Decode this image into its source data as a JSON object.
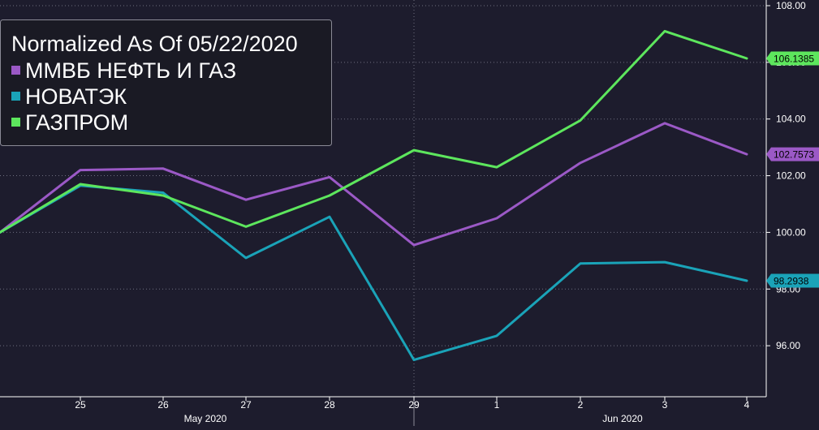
{
  "colors": {
    "background": "#1d1c2d",
    "grid": "#6f6f80",
    "axis_text": "#ffffff",
    "legend_bg": "#1a1a24",
    "legend_border": "#8a8a96"
  },
  "chart_data": {
    "type": "line",
    "title": "Normalized As Of 05/22/2020",
    "x": [
      "22",
      "25",
      "26",
      "27",
      "28",
      "29",
      "1",
      "2",
      "3",
      "4"
    ],
    "x_tick_labels": [
      "25",
      "26",
      "27",
      "28",
      "29",
      "1",
      "2",
      "3",
      "4"
    ],
    "month_labels": [
      {
        "label": "May 2020",
        "at": "26"
      },
      {
        "label": "Jun 2020",
        "at": "2"
      }
    ],
    "month_divider_at": "29",
    "ylim": [
      94.2,
      108.2
    ],
    "y_ticks": [
      "96.00",
      "98.00",
      "100.00",
      "102.00",
      "104.00",
      "106.00",
      "108.00"
    ],
    "grid": true,
    "legend_position": "top-left",
    "series": [
      {
        "name": "ММВБ НЕФТЬ И ГАЗ",
        "color": "#9b59c6",
        "values": [
          100.0,
          102.2,
          102.25,
          101.15,
          101.95,
          99.55,
          100.5,
          102.45,
          103.85,
          102.7573
        ],
        "last_label": "102.7573"
      },
      {
        "name": "НОВАТЭК",
        "color": "#1aa3b8",
        "values": [
          100.0,
          101.65,
          101.4,
          99.1,
          100.55,
          95.5,
          96.35,
          98.9,
          98.95,
          98.2938
        ],
        "last_label": "98.2938"
      },
      {
        "name": "ГАЗПРОМ",
        "color": "#5de65d",
        "values": [
          100.0,
          101.7,
          101.3,
          100.2,
          101.3,
          102.9,
          102.3,
          103.95,
          107.1,
          106.1385
        ],
        "last_label": "106.1385"
      }
    ]
  }
}
